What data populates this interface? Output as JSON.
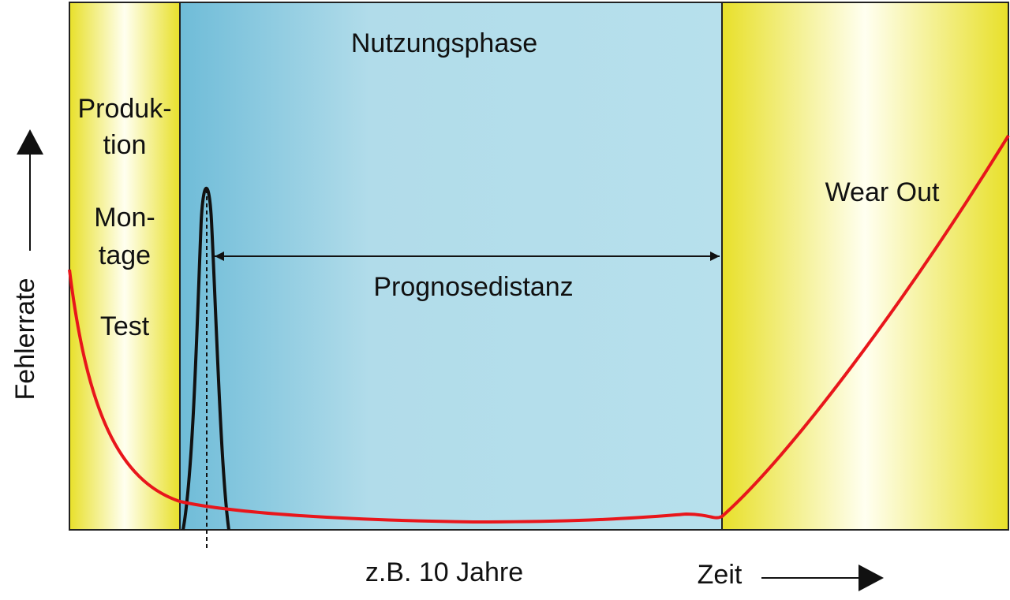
{
  "phases": {
    "production": {
      "lines": [
        "Produk-",
        "tion",
        "Mon-",
        "tage",
        "Test"
      ]
    },
    "usage": "Nutzungsphase",
    "wear_out": "Wear Out"
  },
  "prognosis": "Prognosedistanz",
  "axes": {
    "y_label": "Fehlerrate",
    "x_label": "Zeit",
    "x_note": "z.B. 10 Jahre"
  }
}
